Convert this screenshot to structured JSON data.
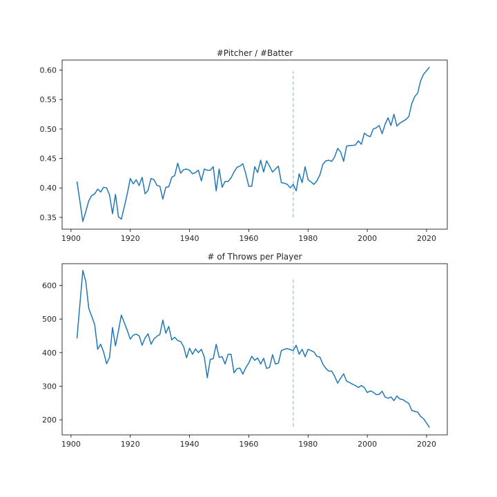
{
  "chart_data": [
    {
      "type": "line",
      "title": "#Pitcher / #Batter",
      "xlabel": "",
      "ylabel": "",
      "xlim": [
        1897,
        2027
      ],
      "ylim": [
        0.33,
        0.617
      ],
      "x_ticks": [
        1900,
        1920,
        1940,
        1960,
        1980,
        2000,
        2020
      ],
      "x_tick_labels": [
        "1900",
        "1920",
        "1940",
        "1960",
        "1980",
        "2000",
        "2020"
      ],
      "y_ticks": [
        0.35,
        0.4,
        0.45,
        0.5,
        0.55,
        0.6
      ],
      "y_tick_labels": [
        "0.35",
        "0.40",
        "0.45",
        "0.50",
        "0.55",
        "0.60"
      ],
      "grid": false,
      "color": "#1f77b4",
      "marker_line": {
        "x": 1975,
        "y_range": [
          0.35,
          0.598
        ],
        "color": "#aec7e8",
        "style": "dashed"
      },
      "x": [
        1902,
        1903,
        1904,
        1905,
        1906,
        1907,
        1908,
        1909,
        1910,
        1911,
        1912,
        1913,
        1914,
        1915,
        1916,
        1917,
        1918,
        1919,
        1920,
        1921,
        1922,
        1923,
        1924,
        1925,
        1926,
        1927,
        1928,
        1929,
        1930,
        1931,
        1932,
        1933,
        1934,
        1935,
        1936,
        1937,
        1938,
        1939,
        1940,
        1941,
        1942,
        1943,
        1944,
        1945,
        1946,
        1947,
        1948,
        1949,
        1950,
        1951,
        1952,
        1953,
        1954,
        1955,
        1956,
        1957,
        1958,
        1959,
        1960,
        1961,
        1962,
        1963,
        1964,
        1965,
        1966,
        1967,
        1968,
        1969,
        1970,
        1971,
        1972,
        1973,
        1974,
        1975,
        1976,
        1977,
        1978,
        1979,
        1980,
        1981,
        1982,
        1983,
        1984,
        1985,
        1986,
        1987,
        1988,
        1989,
        1990,
        1991,
        1992,
        1993,
        1994,
        1995,
        1996,
        1997,
        1998,
        1999,
        2000,
        2001,
        2002,
        2003,
        2004,
        2005,
        2006,
        2007,
        2008,
        2009,
        2010,
        2011,
        2012,
        2013,
        2014,
        2015,
        2016,
        2017,
        2018,
        2019,
        2020,
        2021
      ],
      "y": [
        0.411,
        0.377,
        0.343,
        0.36,
        0.378,
        0.387,
        0.39,
        0.398,
        0.393,
        0.401,
        0.4,
        0.388,
        0.356,
        0.389,
        0.351,
        0.347,
        0.368,
        0.39,
        0.416,
        0.407,
        0.414,
        0.404,
        0.418,
        0.39,
        0.396,
        0.416,
        0.414,
        0.404,
        0.403,
        0.381,
        0.401,
        0.402,
        0.418,
        0.421,
        0.442,
        0.425,
        0.431,
        0.432,
        0.43,
        0.424,
        0.426,
        0.43,
        0.412,
        0.432,
        0.43,
        0.43,
        0.436,
        0.395,
        0.432,
        0.401,
        0.411,
        0.411,
        0.417,
        0.427,
        0.435,
        0.437,
        0.441,
        0.424,
        0.403,
        0.403,
        0.436,
        0.426,
        0.447,
        0.427,
        0.446,
        0.437,
        0.427,
        0.432,
        0.437,
        0.409,
        0.408,
        0.406,
        0.4,
        0.406,
        0.395,
        0.424,
        0.409,
        0.436,
        0.414,
        0.41,
        0.406,
        0.412,
        0.422,
        0.44,
        0.446,
        0.447,
        0.445,
        0.453,
        0.467,
        0.461,
        0.445,
        0.471,
        0.472,
        0.472,
        0.473,
        0.48,
        0.474,
        0.493,
        0.489,
        0.487,
        0.5,
        0.502,
        0.506,
        0.492,
        0.508,
        0.519,
        0.506,
        0.525,
        0.505,
        0.51,
        0.513,
        0.516,
        0.521,
        0.543,
        0.555,
        0.561,
        0.582,
        0.593,
        0.599,
        0.605
      ]
    },
    {
      "type": "line",
      "title": "# of Throws per Player",
      "xlabel": "",
      "ylabel": "",
      "xlim": [
        1897,
        2027
      ],
      "ylim": [
        155,
        665
      ],
      "x_ticks": [
        1900,
        1920,
        1940,
        1960,
        1980,
        2000,
        2020
      ],
      "x_tick_labels": [
        "1900",
        "1920",
        "1940",
        "1960",
        "1980",
        "2000",
        "2020"
      ],
      "y_ticks": [
        200,
        300,
        400,
        500,
        600
      ],
      "y_tick_labels": [
        "200",
        "300",
        "400",
        "500",
        "600"
      ],
      "grid": false,
      "color": "#1f77b4",
      "marker_line": {
        "x": 1975,
        "y_range": [
          180,
          620
        ],
        "color": "#aec7e8",
        "style": "dashed"
      },
      "x": [
        1902,
        1903,
        1904,
        1905,
        1906,
        1907,
        1908,
        1909,
        1910,
        1911,
        1912,
        1913,
        1914,
        1915,
        1916,
        1917,
        1918,
        1919,
        1920,
        1921,
        1922,
        1923,
        1924,
        1925,
        1926,
        1927,
        1928,
        1929,
        1930,
        1931,
        1932,
        1933,
        1934,
        1935,
        1936,
        1937,
        1938,
        1939,
        1940,
        1941,
        1942,
        1943,
        1944,
        1945,
        1946,
        1947,
        1948,
        1949,
        1950,
        1951,
        1952,
        1953,
        1954,
        1955,
        1956,
        1957,
        1958,
        1959,
        1960,
        1961,
        1962,
        1963,
        1964,
        1965,
        1966,
        1967,
        1968,
        1969,
        1970,
        1971,
        1972,
        1973,
        1974,
        1975,
        1976,
        1977,
        1978,
        1979,
        1980,
        1981,
        1982,
        1983,
        1984,
        1985,
        1986,
        1987,
        1988,
        1989,
        1990,
        1991,
        1992,
        1993,
        1994,
        1995,
        1996,
        1997,
        1998,
        1999,
        2000,
        2001,
        2002,
        2003,
        2004,
        2005,
        2006,
        2007,
        2008,
        2009,
        2010,
        2011,
        2012,
        2013,
        2014,
        2015,
        2016,
        2017,
        2018,
        2019,
        2020,
        2021
      ],
      "y": [
        442,
        545,
        645,
        612,
        532,
        508,
        483,
        410,
        425,
        402,
        367,
        386,
        475,
        420,
        465,
        512,
        489,
        466,
        440,
        452,
        455,
        450,
        422,
        444,
        456,
        425,
        441,
        449,
        454,
        497,
        458,
        478,
        438,
        446,
        436,
        433,
        418,
        385,
        413,
        395,
        411,
        400,
        410,
        387,
        325,
        380,
        382,
        425,
        386,
        388,
        366,
        395,
        395,
        340,
        352,
        354,
        336,
        355,
        369,
        389,
        377,
        384,
        366,
        383,
        353,
        356,
        394,
        366,
        369,
        406,
        410,
        412,
        409,
        406,
        422,
        395,
        410,
        388,
        410,
        406,
        402,
        389,
        387,
        366,
        353,
        345,
        345,
        329,
        309,
        324,
        337,
        315,
        311,
        306,
        302,
        296,
        302,
        296,
        281,
        286,
        282,
        275,
        276,
        285,
        268,
        264,
        268,
        257,
        271,
        262,
        260,
        254,
        249,
        228,
        225,
        223,
        210,
        203,
        190,
        177
      ]
    }
  ]
}
